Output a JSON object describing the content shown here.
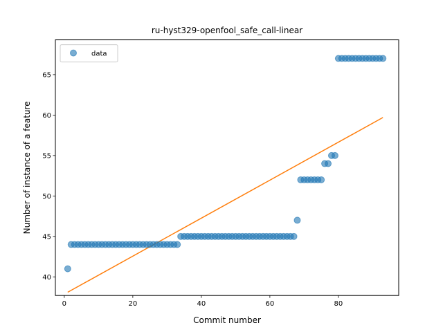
{
  "chart_data": {
    "type": "scatter",
    "title": "ru-hyst329-openfool_safe_call-linear",
    "xlabel": "Commit number",
    "ylabel": "Number of instance of a feature",
    "xlim": [
      -2.6,
      97.6
    ],
    "ylim": [
      37.7,
      69.3
    ],
    "xticks": [
      0,
      20,
      40,
      60,
      80
    ],
    "yticks": [
      40,
      45,
      50,
      55,
      60,
      65
    ],
    "grid": false,
    "legend": {
      "position": "top-left",
      "entries": [
        "data"
      ]
    },
    "colors": {
      "data": "#1f77b4",
      "fit": "#ff7f0e"
    },
    "series": [
      {
        "name": "data",
        "kind": "scatter",
        "x": [
          1,
          2,
          3,
          4,
          5,
          6,
          7,
          8,
          9,
          10,
          11,
          12,
          13,
          14,
          15,
          16,
          17,
          18,
          19,
          20,
          21,
          22,
          23,
          24,
          25,
          26,
          27,
          28,
          29,
          30,
          31,
          32,
          33,
          34,
          35,
          36,
          37,
          38,
          39,
          40,
          41,
          42,
          43,
          44,
          45,
          46,
          47,
          48,
          49,
          50,
          51,
          52,
          53,
          54,
          55,
          56,
          57,
          58,
          59,
          60,
          61,
          62,
          63,
          64,
          65,
          66,
          67,
          68,
          69,
          70,
          71,
          72,
          73,
          74,
          75,
          76,
          77,
          78,
          79,
          80,
          81,
          82,
          83,
          84,
          85,
          86,
          87,
          88,
          89,
          90,
          91,
          92,
          93
        ],
        "y": [
          41,
          44,
          44,
          44,
          44,
          44,
          44,
          44,
          44,
          44,
          44,
          44,
          44,
          44,
          44,
          44,
          44,
          44,
          44,
          44,
          44,
          44,
          44,
          44,
          44,
          44,
          44,
          44,
          44,
          44,
          44,
          44,
          44,
          45,
          45,
          45,
          45,
          45,
          45,
          45,
          45,
          45,
          45,
          45,
          45,
          45,
          45,
          45,
          45,
          45,
          45,
          45,
          45,
          45,
          45,
          45,
          45,
          45,
          45,
          45,
          45,
          45,
          45,
          45,
          45,
          45,
          45,
          47,
          52,
          52,
          52,
          52,
          52,
          52,
          52,
          54,
          54,
          55,
          55,
          67,
          67,
          67,
          67,
          67,
          67,
          67,
          67,
          67,
          67,
          67,
          67,
          67,
          67
        ]
      },
      {
        "kind": "line",
        "x": [
          1,
          93
        ],
        "y": [
          38.1,
          59.7
        ]
      }
    ]
  }
}
